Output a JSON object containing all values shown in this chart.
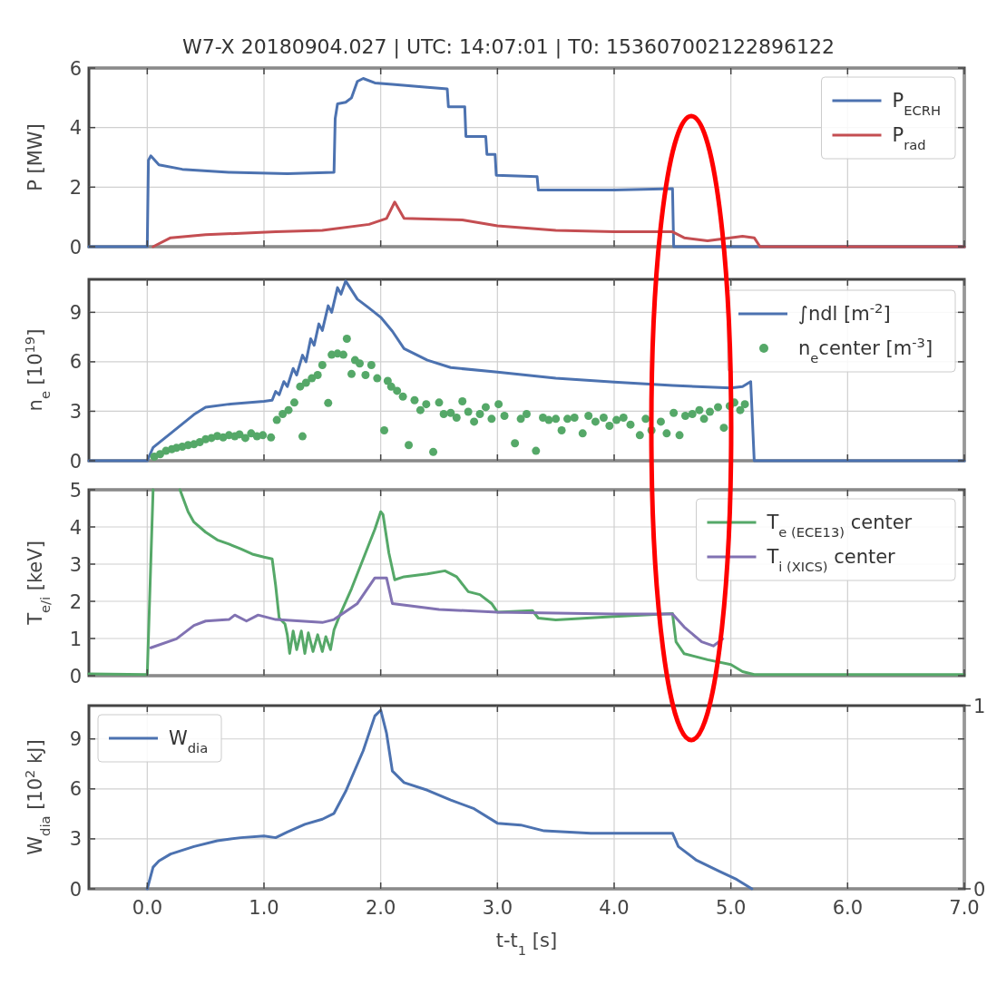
{
  "chart_data": [
    {
      "type": "line",
      "title": "W7-X 20180904.027 | UTC: 14:07:01 | T0: 153607002122896122",
      "ylabel": "P [MW]",
      "xlim": [
        -0.5,
        7.0
      ],
      "ylim": [
        0,
        6
      ],
      "xticks": [
        0,
        1,
        2,
        3,
        4,
        5,
        6,
        7
      ],
      "yticks": [
        0,
        2,
        4,
        6
      ],
      "tick_labels": "y",
      "grid": true,
      "legend": "top right",
      "series": [
        {
          "name": "P$_{ECRH}$",
          "color": "#4c72b0",
          "x": [
            -0.5,
            0.0,
            0.01,
            0.03,
            0.1,
            0.3,
            0.7,
            1.2,
            1.6,
            1.61,
            1.63,
            1.7,
            1.75,
            1.8,
            1.85,
            1.95,
            2.1,
            2.4,
            2.57,
            2.58,
            2.72,
            2.73,
            2.9,
            2.91,
            2.98,
            2.99,
            3.34,
            3.35,
            4.0,
            4.5,
            4.51,
            7.0
          ],
          "values": [
            0,
            0,
            2.9,
            3.05,
            2.75,
            2.6,
            2.5,
            2.45,
            2.5,
            4.3,
            4.8,
            4.85,
            5.0,
            5.55,
            5.65,
            5.5,
            5.45,
            5.35,
            5.3,
            4.7,
            4.7,
            3.7,
            3.7,
            3.1,
            3.1,
            2.4,
            2.35,
            1.9,
            1.9,
            1.95,
            0,
            0
          ]
        },
        {
          "name": "P$_{rad}$",
          "color": "#c44e52",
          "x": [
            0.05,
            0.2,
            0.5,
            1.1,
            1.5,
            1.9,
            2.05,
            2.12,
            2.2,
            2.7,
            3.0,
            3.5,
            4.0,
            4.5,
            4.6,
            4.8,
            5.1,
            5.2,
            5.25,
            7.0
          ],
          "values": [
            0,
            0.3,
            0.4,
            0.5,
            0.55,
            0.75,
            0.95,
            1.5,
            0.95,
            0.9,
            0.7,
            0.55,
            0.5,
            0.5,
            0.3,
            0.2,
            0.35,
            0.3,
            0,
            0
          ]
        }
      ]
    },
    {
      "type": "line",
      "ylabel": "n$_{e}$ [10$^{19}$]",
      "xlim": [
        -0.5,
        7.0
      ],
      "ylim": [
        0,
        11
      ],
      "xticks": [
        0,
        1,
        2,
        3,
        4,
        5,
        6,
        7
      ],
      "yticks": [
        0,
        3,
        6,
        9
      ],
      "tick_labels": "y",
      "grid": true,
      "legend": "right",
      "series": [
        {
          "name": "∫ndl [m$^{-2}$]",
          "color": "#4c72b0",
          "x": [
            -0.5,
            0.0,
            0.05,
            0.2,
            0.4,
            0.5,
            0.7,
            1.0,
            1.07,
            1.1,
            1.13,
            1.17,
            1.2,
            1.25,
            1.28,
            1.33,
            1.36,
            1.4,
            1.43,
            1.47,
            1.5,
            1.55,
            1.58,
            1.63,
            1.66,
            1.7,
            1.8,
            1.9,
            2.0,
            2.1,
            2.2,
            2.4,
            2.6,
            3.0,
            3.5,
            4.0,
            4.5,
            5.0,
            5.1,
            5.17,
            5.2,
            7.0
          ],
          "values": [
            0,
            0,
            0.8,
            1.66,
            2.8,
            3.25,
            3.43,
            3.6,
            3.67,
            4.2,
            4.0,
            4.8,
            4.5,
            5.6,
            5.2,
            6.4,
            6.0,
            7.4,
            7.0,
            8.3,
            7.9,
            9.4,
            9.0,
            10.5,
            10.1,
            10.9,
            9.8,
            9.26,
            8.7,
            7.85,
            6.8,
            6.1,
            5.65,
            5.37,
            5.0,
            4.77,
            4.56,
            4.42,
            4.5,
            4.8,
            0,
            0
          ]
        },
        {
          "name": "n$_{e}$center [m$^{-3}$]",
          "type": "scatter",
          "marker": "circle",
          "color": "#55a868",
          "x": [
            0.06,
            0.11,
            0.16,
            0.21,
            0.25,
            0.3,
            0.35,
            0.4,
            0.45,
            0.5,
            0.55,
            0.6,
            0.65,
            0.7,
            0.75,
            0.79,
            0.84,
            0.89,
            0.94,
            0.99,
            1.06,
            1.11,
            1.16,
            1.21,
            1.26,
            1.31,
            1.33,
            1.36,
            1.41,
            1.46,
            1.5,
            1.55,
            1.58,
            1.63,
            1.68,
            1.71,
            1.75,
            1.78,
            1.82,
            1.87,
            1.92,
            1.97,
            2.03,
            2.06,
            2.09,
            2.14,
            2.19,
            2.24,
            2.29,
            2.34,
            2.39,
            2.45,
            2.5,
            2.54,
            2.6,
            2.65,
            2.7,
            2.75,
            2.8,
            2.85,
            2.9,
            2.95,
            3.01,
            3.06,
            3.15,
            3.2,
            3.25,
            3.33,
            3.39,
            3.44,
            3.5,
            3.55,
            3.6,
            3.66,
            3.73,
            3.78,
            3.84,
            3.91,
            3.96,
            4.02,
            4.08,
            4.14,
            4.22,
            4.27,
            4.32,
            4.4,
            4.45,
            4.51,
            4.56,
            4.61,
            4.67,
            4.73,
            4.77,
            4.82,
            4.89,
            4.94,
            4.99,
            5.03,
            5.08,
            5.12
          ],
          "values": [
            0.25,
            0.4,
            0.6,
            0.7,
            0.78,
            0.85,
            0.95,
            1.0,
            1.13,
            1.3,
            1.38,
            1.5,
            1.41,
            1.55,
            1.48,
            1.6,
            1.38,
            1.66,
            1.48,
            1.55,
            1.41,
            2.47,
            2.83,
            3.07,
            3.53,
            4.5,
            1.48,
            4.73,
            5.0,
            5.2,
            5.8,
            3.5,
            6.43,
            6.5,
            6.43,
            7.4,
            5.26,
            6.1,
            5.9,
            5.2,
            5.8,
            5.0,
            1.84,
            4.84,
            4.49,
            4.24,
            3.89,
            0.95,
            3.67,
            3.07,
            3.43,
            0.53,
            3.53,
            2.83,
            2.9,
            2.61,
            3.6,
            2.97,
            2.37,
            2.83,
            3.25,
            2.54,
            3.43,
            2.72,
            1.06,
            2.54,
            2.83,
            0.6,
            2.61,
            2.47,
            2.54,
            1.84,
            2.54,
            2.61,
            1.66,
            2.72,
            2.37,
            2.61,
            2.12,
            2.47,
            2.61,
            2.19,
            1.55,
            2.54,
            1.84,
            2.37,
            1.66,
            2.9,
            1.55,
            2.72,
            2.83,
            3.07,
            2.54,
            2.97,
            3.25,
            2.0,
            3.32,
            3.53,
            3.07,
            3.43
          ]
        }
      ]
    },
    {
      "type": "line",
      "ylabel": "T$_{e/i}$ [keV]",
      "xlim": [
        -0.5,
        7.0
      ],
      "ylim": [
        0,
        5
      ],
      "xticks": [
        0,
        1,
        2,
        3,
        4,
        5,
        6,
        7
      ],
      "yticks": [
        0,
        1,
        2,
        3,
        4,
        5
      ],
      "tick_labels": "y",
      "grid": true,
      "legend": "top right",
      "series": [
        {
          "name": "T$_{e (ECE13)}$ center",
          "color": "#55a868",
          "x": [
            -0.5,
            0.0,
            0.05,
            0.15,
            0.28,
            0.35,
            0.4,
            0.5,
            0.6,
            0.7,
            0.8,
            0.9,
            1.0,
            1.07,
            1.1,
            1.13,
            1.18,
            1.2,
            1.22,
            1.25,
            1.28,
            1.32,
            1.35,
            1.38,
            1.42,
            1.46,
            1.5,
            1.53,
            1.57,
            1.6,
            1.65,
            1.75,
            1.85,
            1.95,
            2.0,
            2.02,
            2.07,
            2.12,
            2.2,
            2.4,
            2.55,
            2.65,
            2.75,
            2.85,
            2.95,
            3.0,
            3.3,
            3.35,
            3.5,
            4.0,
            4.5,
            4.53,
            4.6,
            4.8,
            5.0,
            5.1,
            5.2,
            7.0
          ],
          "values": [
            0.05,
            0.03,
            5.0,
            null,
            5.0,
            4.41,
            4.13,
            3.86,
            3.65,
            3.54,
            3.41,
            3.27,
            3.19,
            3.14,
            2.42,
            1.55,
            1.39,
            1.1,
            0.6,
            1.2,
            0.7,
            1.2,
            0.6,
            1.15,
            0.65,
            1.1,
            0.65,
            1.05,
            0.7,
            1.23,
            1.63,
            2.34,
            3.14,
            3.94,
            4.41,
            4.33,
            3.3,
            2.58,
            2.66,
            2.74,
            2.82,
            2.66,
            2.26,
            2.18,
            1.94,
            1.71,
            1.75,
            1.55,
            1.5,
            1.59,
            1.67,
            0.91,
            0.59,
            0.43,
            0.3,
            0.11,
            0.03,
            0.03
          ]
        },
        {
          "name": "T$_{i (XICS)}$ center",
          "color": "#8172b2",
          "x": [
            0.03,
            0.25,
            0.4,
            0.5,
            0.7,
            0.75,
            0.85,
            0.95,
            1.1,
            1.5,
            1.6,
            1.8,
            1.95,
            2.05,
            2.1,
            2.5,
            3.0,
            4.0,
            4.5,
            4.6,
            4.75,
            4.85,
            4.93
          ],
          "values": [
            0.75,
            0.99,
            1.35,
            1.47,
            1.51,
            1.63,
            1.47,
            1.63,
            1.51,
            1.43,
            1.51,
            1.94,
            2.63,
            2.63,
            1.94,
            1.78,
            1.71,
            1.66,
            1.66,
            1.31,
            0.91,
            0.8,
            0.99
          ]
        }
      ]
    },
    {
      "type": "line",
      "ylabel": "W$_{dia}$ [10$^{2}$ kJ]",
      "xlabel": "t-t$_{1}$ [s]",
      "xlim": [
        -0.5,
        7.0
      ],
      "ylim": [
        0,
        11
      ],
      "xticks": [
        {
          "value": 0,
          "label": "0.0"
        },
        {
          "value": 1,
          "label": "1.0"
        },
        {
          "value": 2,
          "label": "2.0"
        },
        {
          "value": 3,
          "label": "3.0"
        },
        {
          "value": 4,
          "label": "4.0"
        },
        {
          "value": 5,
          "label": "5.0"
        },
        {
          "value": 6,
          "label": "6.0"
        },
        {
          "value": 7,
          "label": "7.0"
        }
      ],
      "yticks": [
        0,
        3,
        6,
        9
      ],
      "y2lim": [
        0,
        1
      ],
      "y2ticks": [
        0,
        1
      ],
      "grid": true,
      "legend": "top left",
      "series": [
        {
          "name": "W$_{dia}$",
          "color": "#4c72b0",
          "x": [
            0.0,
            0.05,
            0.1,
            0.2,
            0.4,
            0.6,
            0.8,
            1.0,
            1.1,
            1.2,
            1.35,
            1.5,
            1.6,
            1.7,
            1.85,
            1.95,
            2.0,
            2.05,
            2.1,
            2.2,
            2.4,
            2.6,
            2.8,
            3.0,
            3.2,
            3.4,
            3.8,
            4.5,
            4.55,
            4.7,
            4.9,
            5.05,
            5.18
          ],
          "values": [
            0,
            1.3,
            1.67,
            2.09,
            2.54,
            2.89,
            3.07,
            3.17,
            3.07,
            3.41,
            3.87,
            4.18,
            4.53,
            5.85,
            8.29,
            10.38,
            10.73,
            9.34,
            7.07,
            6.38,
            5.92,
            5.33,
            4.81,
            3.94,
            3.83,
            3.48,
            3.34,
            3.34,
            2.54,
            1.74,
            1.05,
            0.56,
            0
          ]
        }
      ]
    }
  ]
}
